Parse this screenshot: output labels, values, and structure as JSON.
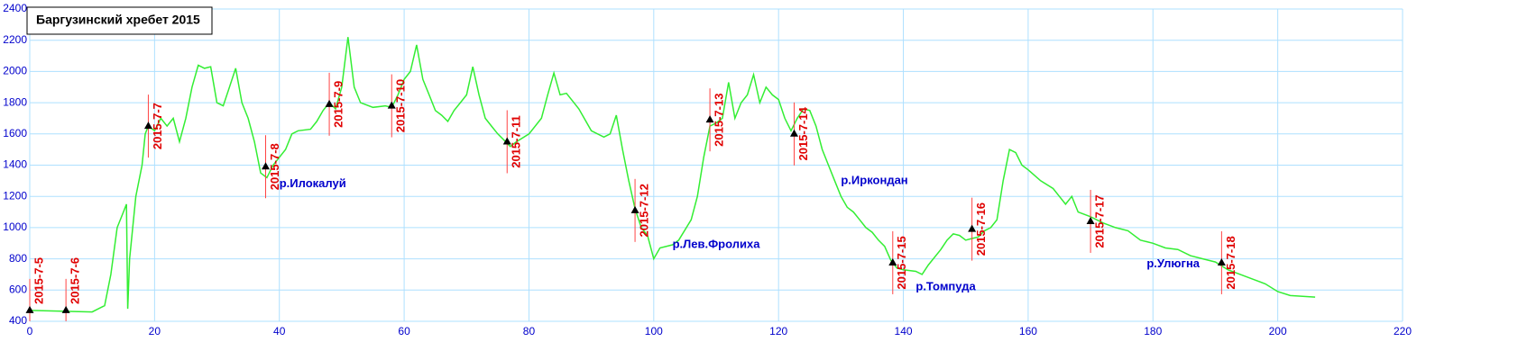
{
  "chart_data": {
    "type": "line",
    "title": "Баргузинский хребет 2015",
    "color": "#33ee33",
    "xlim": [
      0,
      220
    ],
    "ylim": [
      400,
      2400
    ],
    "xticks": [
      0,
      20,
      40,
      60,
      80,
      100,
      120,
      140,
      160,
      180,
      200,
      220
    ],
    "yticks": [
      400,
      600,
      800,
      1000,
      1200,
      1400,
      1600,
      1800,
      2000,
      2200,
      2400
    ],
    "grid": true,
    "x": [
      0,
      5,
      10,
      11,
      12,
      13,
      14,
      15,
      15.5,
      15.7,
      16,
      17,
      18,
      18.5,
      19,
      20,
      21,
      22,
      23,
      24,
      25,
      26,
      27,
      28,
      29,
      30,
      31,
      32,
      33,
      34,
      35,
      36,
      37,
      38,
      39,
      40,
      41,
      42,
      43,
      45,
      46,
      47,
      48,
      49,
      50,
      51,
      52,
      53,
      55,
      57,
      58,
      59,
      60,
      61,
      62,
      63,
      64,
      65,
      66,
      67,
      68,
      69,
      70,
      71,
      72,
      73,
      74,
      75,
      76,
      77,
      78,
      80,
      82,
      83,
      84,
      85,
      86,
      88,
      90,
      92,
      93,
      94,
      95,
      96,
      97,
      98,
      99,
      100,
      101,
      103,
      104,
      106,
      107,
      108,
      109,
      110,
      111,
      112,
      113,
      114,
      115,
      116,
      117,
      118,
      119,
      120,
      121,
      122,
      123,
      124,
      125,
      126,
      127,
      128,
      129,
      130,
      131,
      132,
      133,
      134,
      135,
      136,
      137,
      138,
      139,
      140,
      142,
      143,
      144,
      146,
      147,
      148,
      149,
      150,
      151,
      152,
      153,
      154,
      155,
      156,
      157,
      158,
      159,
      160,
      162,
      164,
      165,
      166,
      167,
      168,
      170,
      172,
      174,
      176,
      178,
      180,
      182,
      184,
      186,
      188,
      190,
      192,
      194,
      196,
      198,
      200,
      202,
      204,
      206
    ],
    "values": [
      470,
      465,
      460,
      480,
      500,
      700,
      1000,
      1100,
      1150,
      480,
      800,
      1200,
      1400,
      1600,
      1650,
      1620,
      1700,
      1650,
      1700,
      1550,
      1700,
      1900,
      2040,
      2020,
      2030,
      1800,
      1780,
      1900,
      2020,
      1800,
      1700,
      1550,
      1350,
      1320,
      1400,
      1450,
      1500,
      1600,
      1620,
      1630,
      1680,
      1750,
      1800,
      1760,
      1900,
      2220,
      1900,
      1800,
      1770,
      1780,
      1770,
      1850,
      1950,
      2000,
      2170,
      1950,
      1850,
      1750,
      1720,
      1680,
      1750,
      1800,
      1850,
      2030,
      1850,
      1700,
      1650,
      1600,
      1560,
      1520,
      1550,
      1600,
      1700,
      1850,
      1990,
      1850,
      1860,
      1760,
      1620,
      1580,
      1600,
      1720,
      1500,
      1300,
      1120,
      1000,
      950,
      800,
      870,
      890,
      920,
      1050,
      1200,
      1450,
      1650,
      1670,
      1700,
      1930,
      1700,
      1800,
      1850,
      1980,
      1800,
      1900,
      1850,
      1820,
      1700,
      1620,
      1700,
      1760,
      1750,
      1650,
      1500,
      1400,
      1300,
      1200,
      1130,
      1100,
      1050,
      1000,
      970,
      920,
      880,
      790,
      740,
      730,
      720,
      700,
      760,
      860,
      920,
      960,
      950,
      920,
      930,
      940,
      980,
      1000,
      1050,
      1300,
      1500,
      1480,
      1400,
      1370,
      1300,
      1250,
      1200,
      1150,
      1200,
      1100,
      1070,
      1030,
      1000,
      980,
      920,
      900,
      870,
      860,
      820,
      800,
      780,
      730,
      700,
      670,
      640,
      590,
      565,
      560,
      555
    ],
    "days": [
      {
        "label": "2015-7-5",
        "x": 0,
        "y": 470
      },
      {
        "label": "2015-7-6",
        "x": 5.8,
        "y": 470
      },
      {
        "label": "2015-7-7",
        "x": 19,
        "y": 1650
      },
      {
        "label": "2015-7-8",
        "x": 37.8,
        "y": 1390
      },
      {
        "label": "2015-7-9",
        "x": 48,
        "y": 1790
      },
      {
        "label": "2015-7-10",
        "x": 58,
        "y": 1780
      },
      {
        "label": "2015-7-11",
        "x": 76.5,
        "y": 1550
      },
      {
        "label": "2015-7-12",
        "x": 97,
        "y": 1110
      },
      {
        "label": "2015-7-13",
        "x": 109,
        "y": 1690
      },
      {
        "label": "2015-7-14",
        "x": 122.5,
        "y": 1600
      },
      {
        "label": "2015-7-15",
        "x": 138.3,
        "y": 775
      },
      {
        "label": "2015-7-16",
        "x": 151,
        "y": 990
      },
      {
        "label": "2015-7-17",
        "x": 170,
        "y": 1040
      },
      {
        "label": "2015-7-18",
        "x": 191,
        "y": 775
      }
    ],
    "rivers": [
      {
        "label": "р.Илокалуй",
        "x": 40,
        "y": 1280
      },
      {
        "label": "р.Лев.Фролиха",
        "x": 103,
        "y": 890
      },
      {
        "label": "р.Иркондан",
        "x": 130,
        "y": 1300
      },
      {
        "label": "р.Томпуда",
        "x": 142,
        "y": 620
      },
      {
        "label": "р.Улюгна",
        "x": 179,
        "y": 765
      }
    ]
  }
}
